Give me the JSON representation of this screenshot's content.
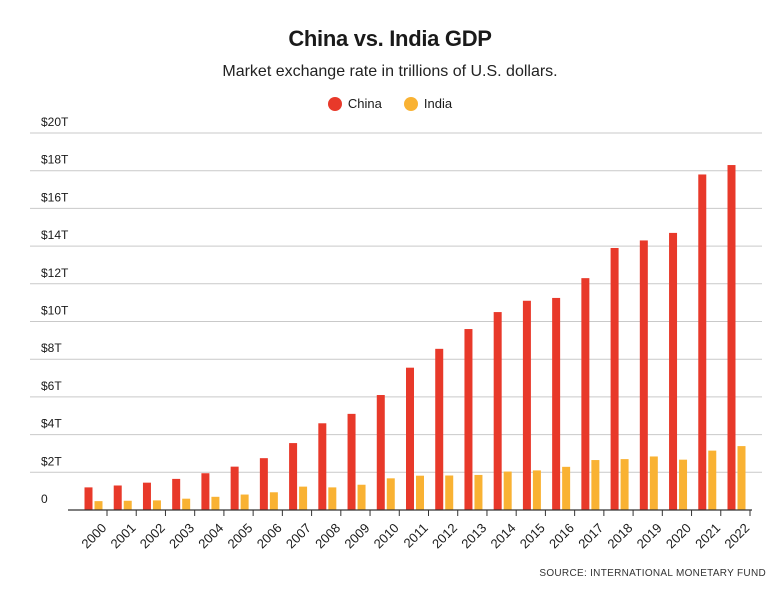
{
  "chart_data": {
    "type": "bar",
    "title": "China vs. India GDP",
    "subtitle": "Market exchange rate in trillions of U.S. dollars.",
    "xlabel": "",
    "ylabel": "",
    "ylim": [
      0,
      20
    ],
    "yticks": [
      0,
      2,
      4,
      6,
      8,
      10,
      12,
      14,
      16,
      18,
      20
    ],
    "ytick_labels": [
      "0",
      "$2T",
      "$4T",
      "$6T",
      "$8T",
      "$10T",
      "$12T",
      "$14T",
      "$16T",
      "$18T",
      "$20T"
    ],
    "grid": true,
    "legend_position": "top-center",
    "categories": [
      "2000",
      "2001",
      "2002",
      "2003",
      "2004",
      "2005",
      "2006",
      "2007",
      "2008",
      "2009",
      "2010",
      "2011",
      "2012",
      "2013",
      "2014",
      "2015",
      "2016",
      "2017",
      "2018",
      "2019",
      "2020",
      "2021",
      "2022"
    ],
    "series": [
      {
        "name": "China",
        "color": "#e8392a",
        "values": [
          1.2,
          1.3,
          1.45,
          1.65,
          1.95,
          2.3,
          2.75,
          3.55,
          4.6,
          5.1,
          6.1,
          7.55,
          8.55,
          9.6,
          10.5,
          11.1,
          11.25,
          12.3,
          13.9,
          14.3,
          14.7,
          17.8,
          18.3
        ]
      },
      {
        "name": "India",
        "color": "#f9b233",
        "values": [
          0.47,
          0.49,
          0.51,
          0.6,
          0.7,
          0.82,
          0.94,
          1.24,
          1.2,
          1.34,
          1.68,
          1.82,
          1.83,
          1.86,
          2.04,
          2.1,
          2.29,
          2.65,
          2.7,
          2.84,
          2.67,
          3.15,
          3.39
        ]
      }
    ],
    "source": "SOURCE: INTERNATIONAL MONETARY FUND"
  }
}
